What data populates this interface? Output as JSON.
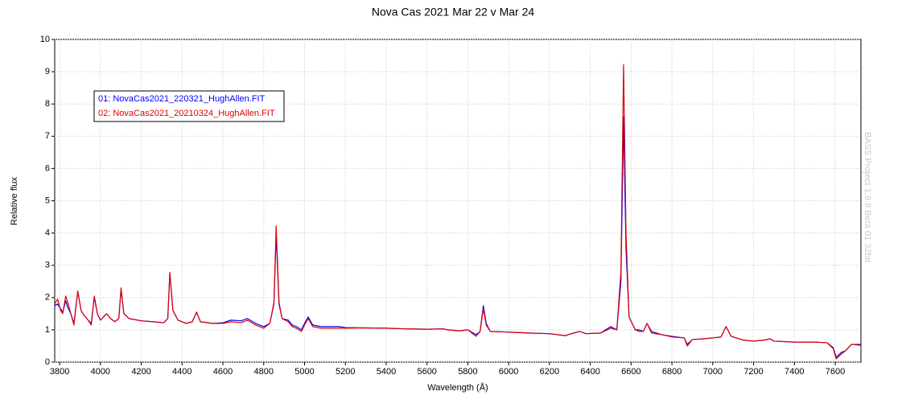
{
  "chart_data": {
    "type": "line",
    "title": "Nova Cas 2021 Mar 22 v Mar 24",
    "x_label": "Wavelength (Å)",
    "y_label": "Relative flux",
    "watermark": "BASS Project 1.9.9 Beta 01 32bit",
    "xlim": [
      3776,
      7726
    ],
    "ylim": [
      0,
      10
    ],
    "xticks": [
      3800,
      4000,
      4200,
      4400,
      4600,
      4800,
      5000,
      5200,
      5400,
      5600,
      5800,
      6000,
      6200,
      6400,
      6600,
      6800,
      7000,
      7200,
      7400,
      7600
    ],
    "yticks": [
      0,
      1,
      2,
      3,
      4,
      5,
      6,
      7,
      8,
      9,
      10
    ],
    "grid": true,
    "legend": "upper left",
    "x": [
      3776,
      3790,
      3805,
      3815,
      3830,
      3840,
      3855,
      3870,
      3889,
      3905,
      3920,
      3940,
      3955,
      3970,
      3985,
      4000,
      4030,
      4050,
      4070,
      4090,
      4101,
      4115,
      4140,
      4200,
      4260,
      4310,
      4330,
      4340,
      4355,
      4380,
      4420,
      4450,
      4471,
      4490,
      4550,
      4600,
      4640,
      4690,
      4720,
      4760,
      4800,
      4830,
      4850,
      4861,
      4875,
      4890,
      4920,
      4940,
      4960,
      4985,
      5000,
      5018,
      5040,
      5080,
      5120,
      5169,
      5200,
      5300,
      5400,
      5500,
      5600,
      5680,
      5700,
      5760,
      5800,
      5840,
      5860,
      5876,
      5890,
      5910,
      6000,
      6100,
      6200,
      6280,
      6300,
      6347,
      6380,
      6450,
      6500,
      6530,
      6550,
      6563,
      6575,
      6590,
      6620,
      6640,
      6660,
      6678,
      6700,
      6750,
      6800,
      6860,
      6875,
      6900,
      6950,
      7000,
      7040,
      7065,
      7090,
      7150,
      7200,
      7250,
      7281,
      7300,
      7400,
      7500,
      7560,
      7590,
      7605,
      7630,
      7650,
      7680,
      7726
    ],
    "series": [
      {
        "name": "01: NovaCas2021_220321_HughAllen.FIT",
        "color": "#0000ff",
        "values": [
          1.75,
          1.8,
          1.65,
          1.55,
          1.9,
          1.7,
          1.5,
          1.2,
          2.2,
          1.6,
          1.45,
          1.3,
          1.2,
          2.0,
          1.5,
          1.3,
          1.5,
          1.35,
          1.25,
          1.35,
          2.25,
          1.5,
          1.35,
          1.28,
          1.25,
          1.22,
          1.35,
          2.75,
          1.6,
          1.3,
          1.2,
          1.25,
          1.55,
          1.25,
          1.2,
          1.22,
          1.3,
          1.28,
          1.35,
          1.2,
          1.1,
          1.2,
          1.8,
          3.95,
          1.8,
          1.35,
          1.3,
          1.15,
          1.1,
          1.0,
          1.2,
          1.4,
          1.15,
          1.1,
          1.1,
          1.1,
          1.07,
          1.06,
          1.05,
          1.03,
          1.02,
          1.03,
          1.0,
          0.97,
          1.0,
          0.85,
          0.95,
          1.75,
          1.2,
          0.95,
          0.93,
          0.9,
          0.88,
          0.82,
          0.87,
          0.95,
          0.88,
          0.9,
          1.1,
          1.0,
          2.5,
          7.6,
          3.5,
          1.4,
          1.0,
          1.0,
          0.95,
          1.2,
          0.95,
          0.85,
          0.8,
          0.75,
          0.55,
          0.7,
          0.72,
          0.75,
          0.78,
          1.1,
          0.8,
          0.68,
          0.65,
          0.68,
          0.72,
          0.65,
          0.62,
          0.62,
          0.6,
          0.45,
          0.15,
          0.3,
          0.35,
          0.55,
          0.55
        ]
      },
      {
        "name": "02: NovaCas2021_20210324_HughAllen.FIT",
        "color": "#e00000",
        "values": [
          1.8,
          1.95,
          1.6,
          1.5,
          2.05,
          1.85,
          1.5,
          1.15,
          2.2,
          1.6,
          1.45,
          1.3,
          1.15,
          2.05,
          1.5,
          1.3,
          1.5,
          1.35,
          1.25,
          1.35,
          2.3,
          1.5,
          1.35,
          1.28,
          1.25,
          1.22,
          1.35,
          2.78,
          1.6,
          1.3,
          1.2,
          1.25,
          1.55,
          1.25,
          1.2,
          1.2,
          1.25,
          1.22,
          1.3,
          1.15,
          1.05,
          1.2,
          1.85,
          4.22,
          1.85,
          1.35,
          1.25,
          1.1,
          1.05,
          0.95,
          1.15,
          1.35,
          1.1,
          1.05,
          1.05,
          1.05,
          1.05,
          1.06,
          1.05,
          1.03,
          1.02,
          1.03,
          1.0,
          0.97,
          1.0,
          0.8,
          0.95,
          1.65,
          1.15,
          0.95,
          0.93,
          0.9,
          0.88,
          0.82,
          0.87,
          0.95,
          0.88,
          0.9,
          1.05,
          1.0,
          2.8,
          9.22,
          4.0,
          1.4,
          1.0,
          0.95,
          0.95,
          1.2,
          0.9,
          0.85,
          0.78,
          0.75,
          0.5,
          0.7,
          0.72,
          0.75,
          0.78,
          1.1,
          0.8,
          0.68,
          0.65,
          0.68,
          0.72,
          0.65,
          0.62,
          0.62,
          0.6,
          0.42,
          0.1,
          0.25,
          0.35,
          0.55,
          0.52
        ]
      }
    ]
  }
}
